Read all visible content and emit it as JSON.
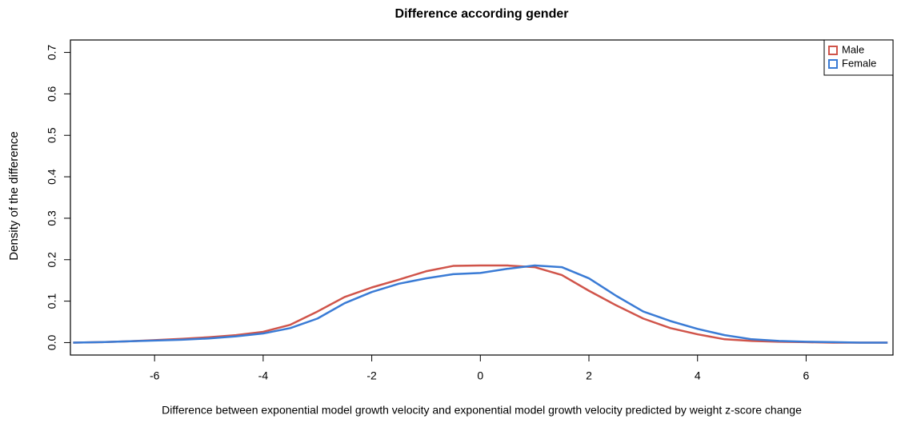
{
  "chart_data": {
    "type": "line",
    "title": "Difference according gender",
    "xlabel": "Difference between exponential model growth velocity and exponential model growth velocity predicted by weight z-score change",
    "ylabel": "Density of the difference",
    "x": [
      -7.5,
      -7,
      -6.5,
      -6,
      -5.5,
      -5,
      -4.5,
      -4,
      -3.5,
      -3,
      -2.5,
      -2,
      -1.5,
      -1,
      -0.5,
      0,
      0.5,
      1,
      1.5,
      2,
      2.5,
      3,
      3.5,
      4,
      4.5,
      5,
      5.5,
      6,
      6.5,
      7,
      7.5
    ],
    "series": [
      {
        "name": "Male",
        "color": "#d0544a",
        "values": [
          0,
          0.001,
          0.003,
          0.006,
          0.009,
          0.013,
          0.018,
          0.026,
          0.043,
          0.075,
          0.11,
          0.133,
          0.152,
          0.172,
          0.185,
          0.186,
          0.186,
          0.182,
          0.163,
          0.125,
          0.09,
          0.058,
          0.035,
          0.02,
          0.008,
          0.004,
          0.002,
          0.001,
          0,
          0,
          0
        ]
      },
      {
        "name": "Female",
        "color": "#3a7bd5",
        "values": [
          0,
          0.001,
          0.003,
          0.005,
          0.007,
          0.01,
          0.015,
          0.022,
          0.035,
          0.058,
          0.095,
          0.122,
          0.142,
          0.155,
          0.165,
          0.168,
          0.178,
          0.186,
          0.182,
          0.155,
          0.113,
          0.075,
          0.052,
          0.033,
          0.018,
          0.008,
          0.004,
          0.002,
          0.001,
          0,
          0
        ]
      }
    ],
    "xlim": [
      -7.55,
      7.6
    ],
    "ylim": [
      -0.03,
      0.73
    ],
    "xticks": [
      -6,
      -4,
      -2,
      0,
      2,
      4,
      6
    ],
    "yticks": [
      {
        "value": 0,
        "label": "0.0"
      },
      0.1,
      0.2,
      0.3,
      0.4,
      0.5,
      0.6,
      0.7
    ],
    "legend": "top-right"
  }
}
